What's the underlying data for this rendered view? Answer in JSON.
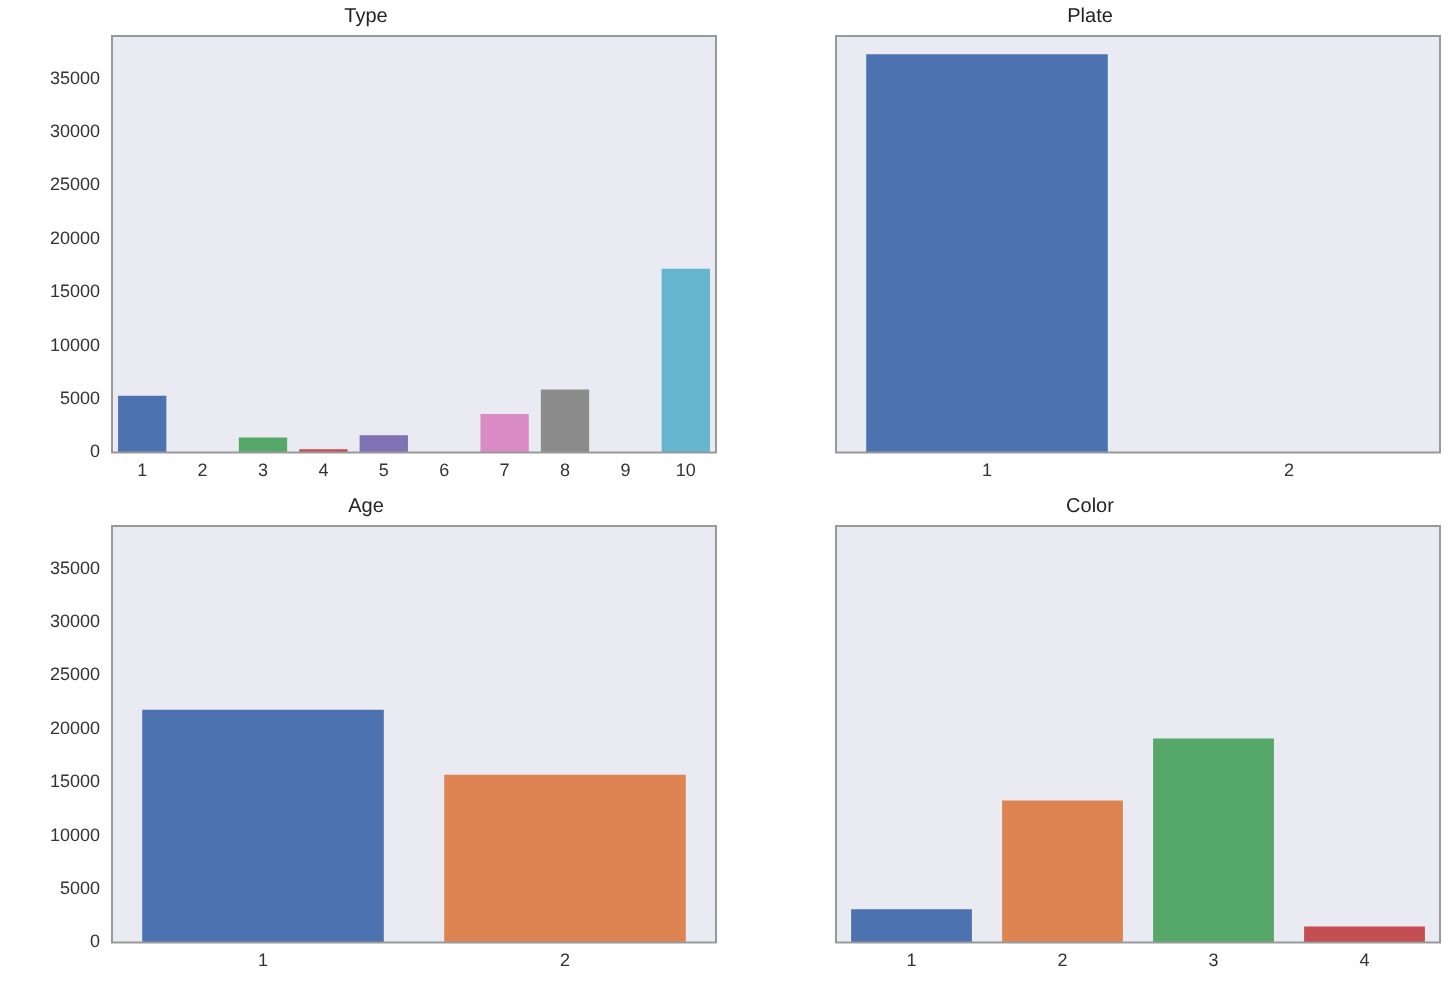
{
  "chart_data": [
    {
      "type": "bar",
      "title": "Type",
      "categories": [
        "1",
        "2",
        "3",
        "4",
        "5",
        "6",
        "7",
        "8",
        "9",
        "10"
      ],
      "values": [
        5300,
        null,
        1400,
        300,
        1600,
        null,
        3600,
        5900,
        null,
        17200
      ],
      "colors": [
        "#4c72b0",
        "#dd8452",
        "#55a868",
        "#c44e52",
        "#8172b3",
        "#937860",
        "#da8bc3",
        "#8c8c8c",
        "#ccb974",
        "#64b5cd"
      ],
      "ylim": [
        0,
        39000
      ],
      "yticks": [
        0,
        5000,
        10000,
        15000,
        20000,
        25000,
        30000,
        35000
      ]
    },
    {
      "type": "bar",
      "title": "Plate",
      "categories": [
        "1",
        "2"
      ],
      "values": [
        37300,
        null
      ],
      "colors": [
        "#4c72b0",
        "#dd8452"
      ],
      "ylim": [
        0,
        39000
      ],
      "yticks": [
        0,
        5000,
        10000,
        15000,
        20000,
        25000,
        30000,
        35000
      ],
      "tick_labels": "x"
    },
    {
      "type": "bar",
      "title": "Age",
      "categories": [
        "1",
        "2"
      ],
      "values": [
        21800,
        15700
      ],
      "colors": [
        "#4c72b0",
        "#dd8452"
      ],
      "ylim": [
        0,
        39000
      ],
      "yticks": [
        0,
        5000,
        10000,
        15000,
        20000,
        25000,
        30000,
        35000
      ]
    },
    {
      "type": "bar",
      "title": "Color",
      "categories": [
        "1",
        "2",
        "3",
        "4"
      ],
      "values": [
        3100,
        13300,
        19100,
        1500
      ],
      "colors": [
        "#4c72b0",
        "#dd8452",
        "#55a868",
        "#c44e52"
      ],
      "ylim": [
        0,
        39000
      ],
      "yticks": [
        0,
        5000,
        10000,
        15000,
        20000,
        25000,
        30000,
        35000
      ],
      "tick_labels": "x"
    }
  ]
}
